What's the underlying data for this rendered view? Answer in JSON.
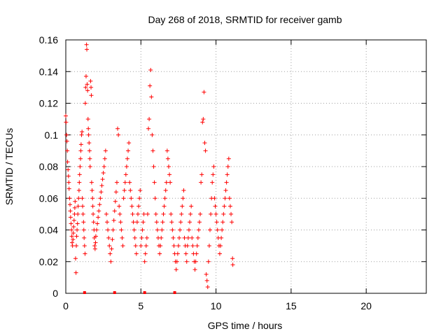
{
  "chart_data": {
    "type": "scatter",
    "title": "Day 268 of 2018, SRMTID for receiver gamb",
    "xlabel": "GPS time / hours",
    "ylabel": "SRMTID / TECUs",
    "xlim": [
      0,
      24
    ],
    "ylim": [
      0,
      0.16
    ],
    "x_ticks": [
      0,
      5,
      10,
      15,
      20
    ],
    "x_tick_labels": [
      "0",
      "5",
      "10",
      "15",
      "20"
    ],
    "y_ticks": [
      0,
      0.02,
      0.04,
      0.06,
      0.08,
      0.1,
      0.12,
      0.14,
      0.16
    ],
    "y_tick_labels": [
      "0",
      "0.02",
      "0.04",
      "0.06",
      "0.08",
      "0.1",
      "0.12",
      "0.14",
      "0.16"
    ],
    "grid": true,
    "marker": "+",
    "colors": {
      "series": "#ff0000",
      "grid": "#a0a0a0",
      "axis": "#000000"
    },
    "series": [
      {
        "name": "SRMTID",
        "points": [
          [
            0.0,
            0.112
          ],
          [
            0.02,
            0.108
          ],
          [
            0.05,
            0.1
          ],
          [
            0.08,
            0.096
          ],
          [
            0.1,
            0.09
          ],
          [
            0.12,
            0.083
          ],
          [
            0.15,
            0.078
          ],
          [
            0.18,
            0.074
          ],
          [
            0.2,
            0.07
          ],
          [
            0.22,
            0.066
          ],
          [
            0.25,
            0.06
          ],
          [
            0.28,
            0.056
          ],
          [
            0.3,
            0.052
          ],
          [
            0.32,
            0.048
          ],
          [
            0.35,
            0.044
          ],
          [
            0.38,
            0.04
          ],
          [
            0.4,
            0.036
          ],
          [
            0.42,
            0.032
          ],
          [
            0.45,
            0.03
          ],
          [
            0.48,
            0.034
          ],
          [
            0.5,
            0.038
          ],
          [
            0.52,
            0.042
          ],
          [
            0.55,
            0.046
          ],
          [
            0.58,
            0.05
          ],
          [
            0.6,
            0.054
          ],
          [
            0.62,
            0.058
          ],
          [
            0.65,
            0.022
          ],
          [
            0.68,
            0.013
          ],
          [
            0.7,
            0.03
          ],
          [
            0.72,
            0.036
          ],
          [
            0.75,
            0.04
          ],
          [
            0.78,
            0.044
          ],
          [
            0.8,
            0.05
          ],
          [
            0.82,
            0.055
          ],
          [
            0.85,
            0.06
          ],
          [
            0.88,
            0.065
          ],
          [
            0.9,
            0.07
          ],
          [
            0.92,
            0.075
          ],
          [
            0.95,
            0.08
          ],
          [
            0.98,
            0.085
          ],
          [
            1.0,
            0.09
          ],
          [
            1.02,
            0.094
          ],
          [
            1.05,
            0.1
          ],
          [
            1.08,
            0.102
          ],
          [
            1.1,
            0.06
          ],
          [
            1.12,
            0.055
          ],
          [
            1.15,
            0.05
          ],
          [
            1.18,
            0.045
          ],
          [
            1.2,
            0.04
          ],
          [
            1.22,
            0.035
          ],
          [
            1.25,
            0.03
          ],
          [
            1.28,
            0.025
          ],
          [
            1.3,
            0.12
          ],
          [
            1.32,
            0.13
          ],
          [
            1.35,
            0.137
          ],
          [
            1.38,
            0.157
          ],
          [
            1.4,
            0.154
          ],
          [
            1.42,
            0.132
          ],
          [
            1.45,
            0.128
          ],
          [
            1.48,
            0.11
          ],
          [
            1.5,
            0.104
          ],
          [
            1.52,
            0.1
          ],
          [
            1.55,
            0.095
          ],
          [
            1.58,
            0.09
          ],
          [
            1.6,
            0.085
          ],
          [
            1.62,
            0.08
          ],
          [
            1.65,
            0.134
          ],
          [
            1.68,
            0.13
          ],
          [
            1.7,
            0.125
          ],
          [
            1.72,
            0.07
          ],
          [
            1.75,
            0.065
          ],
          [
            1.78,
            0.06
          ],
          [
            1.8,
            0.055
          ],
          [
            1.82,
            0.05
          ],
          [
            1.85,
            0.045
          ],
          [
            1.88,
            0.04
          ],
          [
            1.9,
            0.035
          ],
          [
            1.92,
            0.03
          ],
          [
            1.95,
            0.028
          ],
          [
            1.98,
            0.032
          ],
          [
            2.0,
            0.036
          ],
          [
            2.05,
            0.04
          ],
          [
            2.1,
            0.044
          ],
          [
            2.15,
            0.048
          ],
          [
            2.2,
            0.052
          ],
          [
            2.25,
            0.056
          ],
          [
            2.3,
            0.06
          ],
          [
            2.35,
            0.064
          ],
          [
            2.4,
            0.068
          ],
          [
            2.45,
            0.072
          ],
          [
            2.5,
            0.076
          ],
          [
            2.55,
            0.08
          ],
          [
            2.6,
            0.085
          ],
          [
            2.65,
            0.09
          ],
          [
            2.7,
            0.05
          ],
          [
            2.75,
            0.045
          ],
          [
            2.8,
            0.04
          ],
          [
            2.85,
            0.035
          ],
          [
            2.9,
            0.03
          ],
          [
            2.95,
            0.025
          ],
          [
            3.0,
            0.02
          ],
          [
            3.05,
            0.028
          ],
          [
            3.1,
            0.034
          ],
          [
            3.15,
            0.04
          ],
          [
            3.2,
            0.046
          ],
          [
            3.25,
            0.052
          ],
          [
            3.3,
            0.058
          ],
          [
            3.35,
            0.064
          ],
          [
            3.4,
            0.07
          ],
          [
            3.45,
            0.104
          ],
          [
            3.5,
            0.1
          ],
          [
            3.55,
            0.055
          ],
          [
            3.6,
            0.05
          ],
          [
            3.65,
            0.045
          ],
          [
            3.7,
            0.04
          ],
          [
            3.75,
            0.035
          ],
          [
            3.8,
            0.03
          ],
          [
            3.85,
            0.06
          ],
          [
            3.9,
            0.065
          ],
          [
            3.95,
            0.07
          ],
          [
            4.0,
            0.075
          ],
          [
            4.05,
            0.08
          ],
          [
            4.1,
            0.085
          ],
          [
            4.15,
            0.09
          ],
          [
            4.2,
            0.095
          ],
          [
            4.25,
            0.07
          ],
          [
            4.3,
            0.065
          ],
          [
            4.35,
            0.06
          ],
          [
            4.4,
            0.055
          ],
          [
            4.45,
            0.05
          ],
          [
            4.5,
            0.045
          ],
          [
            4.55,
            0.04
          ],
          [
            4.6,
            0.035
          ],
          [
            4.65,
            0.03
          ],
          [
            4.7,
            0.025
          ],
          [
            4.75,
            0.045
          ],
          [
            4.8,
            0.05
          ],
          [
            4.85,
            0.055
          ],
          [
            4.9,
            0.06
          ],
          [
            4.95,
            0.065
          ],
          [
            5.0,
            0.03
          ],
          [
            5.05,
            0.035
          ],
          [
            5.1,
            0.04
          ],
          [
            5.15,
            0.045
          ],
          [
            5.2,
            0.05
          ],
          [
            5.25,
            0.02
          ],
          [
            5.3,
            0.025
          ],
          [
            5.35,
            0.03
          ],
          [
            5.4,
            0.035
          ],
          [
            5.45,
            0.05
          ],
          [
            5.5,
            0.104
          ],
          [
            5.55,
            0.11
          ],
          [
            5.6,
            0.131
          ],
          [
            5.65,
            0.141
          ],
          [
            5.7,
            0.124
          ],
          [
            5.75,
            0.1
          ],
          [
            5.8,
            0.09
          ],
          [
            5.85,
            0.08
          ],
          [
            5.9,
            0.07
          ],
          [
            5.95,
            0.06
          ],
          [
            6.0,
            0.05
          ],
          [
            6.05,
            0.045
          ],
          [
            6.1,
            0.04
          ],
          [
            6.15,
            0.035
          ],
          [
            6.2,
            0.03
          ],
          [
            6.25,
            0.025
          ],
          [
            6.3,
            0.03
          ],
          [
            6.35,
            0.035
          ],
          [
            6.4,
            0.04
          ],
          [
            6.45,
            0.045
          ],
          [
            6.5,
            0.05
          ],
          [
            6.55,
            0.055
          ],
          [
            6.6,
            0.06
          ],
          [
            6.65,
            0.065
          ],
          [
            6.7,
            0.07
          ],
          [
            6.75,
            0.09
          ],
          [
            6.8,
            0.085
          ],
          [
            6.85,
            0.08
          ],
          [
            6.9,
            0.075
          ],
          [
            6.95,
            0.07
          ],
          [
            7.0,
            0.05
          ],
          [
            7.05,
            0.045
          ],
          [
            7.1,
            0.04
          ],
          [
            7.15,
            0.035
          ],
          [
            7.2,
            0.03
          ],
          [
            7.25,
            0.025
          ],
          [
            7.3,
            0.02
          ],
          [
            7.35,
            0.015
          ],
          [
            7.4,
            0.02
          ],
          [
            7.45,
            0.025
          ],
          [
            7.5,
            0.03
          ],
          [
            7.55,
            0.035
          ],
          [
            7.6,
            0.04
          ],
          [
            7.65,
            0.045
          ],
          [
            7.7,
            0.05
          ],
          [
            7.75,
            0.055
          ],
          [
            7.8,
            0.06
          ],
          [
            7.85,
            0.065
          ],
          [
            7.9,
            0.035
          ],
          [
            7.95,
            0.03
          ],
          [
            8.0,
            0.025
          ],
          [
            8.05,
            0.02
          ],
          [
            8.1,
            0.03
          ],
          [
            8.15,
            0.035
          ],
          [
            8.2,
            0.04
          ],
          [
            8.25,
            0.045
          ],
          [
            8.3,
            0.05
          ],
          [
            8.35,
            0.055
          ],
          [
            8.4,
            0.035
          ],
          [
            8.45,
            0.03
          ],
          [
            8.5,
            0.025
          ],
          [
            8.55,
            0.02
          ],
          [
            8.6,
            0.015
          ],
          [
            8.65,
            0.02
          ],
          [
            8.7,
            0.025
          ],
          [
            8.75,
            0.03
          ],
          [
            8.8,
            0.035
          ],
          [
            8.85,
            0.04
          ],
          [
            8.9,
            0.045
          ],
          [
            8.95,
            0.05
          ],
          [
            9.0,
            0.07
          ],
          [
            9.05,
            0.075
          ],
          [
            9.1,
            0.108
          ],
          [
            9.15,
            0.11
          ],
          [
            9.2,
            0.127
          ],
          [
            9.25,
            0.095
          ],
          [
            9.3,
            0.09
          ],
          [
            9.35,
            0.012
          ],
          [
            9.4,
            0.008
          ],
          [
            9.45,
            0.004
          ],
          [
            9.5,
            0.02
          ],
          [
            9.55,
            0.03
          ],
          [
            9.6,
            0.04
          ],
          [
            9.65,
            0.05
          ],
          [
            9.7,
            0.06
          ],
          [
            9.75,
            0.07
          ],
          [
            9.8,
            0.075
          ],
          [
            9.85,
            0.08
          ],
          [
            9.9,
            0.06
          ],
          [
            9.95,
            0.055
          ],
          [
            10.0,
            0.05
          ],
          [
            10.05,
            0.045
          ],
          [
            10.1,
            0.04
          ],
          [
            10.15,
            0.035
          ],
          [
            10.2,
            0.03
          ],
          [
            10.25,
            0.025
          ],
          [
            10.3,
            0.03
          ],
          [
            10.35,
            0.035
          ],
          [
            10.4,
            0.04
          ],
          [
            10.45,
            0.045
          ],
          [
            10.5,
            0.05
          ],
          [
            10.55,
            0.055
          ],
          [
            10.6,
            0.06
          ],
          [
            10.65,
            0.065
          ],
          [
            10.7,
            0.07
          ],
          [
            10.75,
            0.075
          ],
          [
            10.8,
            0.08
          ],
          [
            10.85,
            0.085
          ],
          [
            10.9,
            0.06
          ],
          [
            10.95,
            0.055
          ],
          [
            11.0,
            0.05
          ],
          [
            11.05,
            0.045
          ],
          [
            11.1,
            0.022
          ],
          [
            11.12,
            0.018
          ]
        ]
      }
    ],
    "zero_markers_x": [
      1.25,
      3.25,
      5.25,
      7.25
    ]
  }
}
